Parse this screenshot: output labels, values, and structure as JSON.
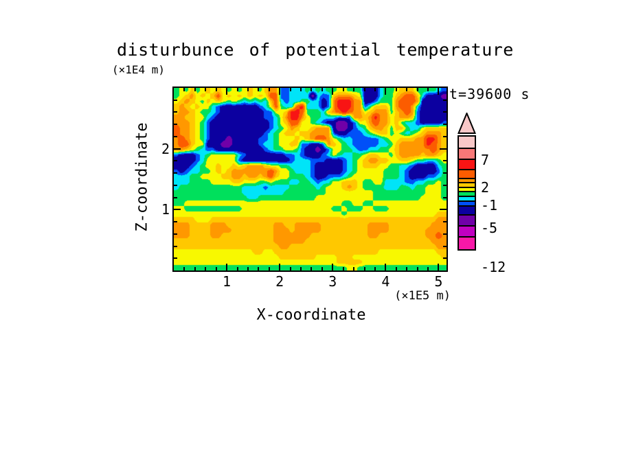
{
  "title": "disturbunce of potential temperature",
  "annotation": {
    "time_label": "t=39600 s"
  },
  "x_axis": {
    "label": "X-coordinate",
    "unit": "(×1E5 m)",
    "range": [
      0,
      5.15
    ],
    "major_ticks": [
      1,
      2,
      3,
      4,
      5
    ],
    "minor_step": 0.2
  },
  "y_axis": {
    "label": "Z-coordinate",
    "unit": "(×1E4 m)",
    "range": [
      0,
      3.0
    ],
    "major_ticks": [
      1,
      2
    ],
    "minor_step": 0.2
  },
  "colorbar": {
    "boxes": [
      {
        "color": "#f8c8c8",
        "h": 20
      },
      {
        "color": "#f87878",
        "h": 18
      },
      {
        "color": "#f81414",
        "h": 17
      },
      {
        "color": "#fc5c00",
        "h": 15
      },
      {
        "color": "#ff9800",
        "h": 8
      },
      {
        "color": "#ffc800",
        "h": 9
      },
      {
        "color": "#f8f800",
        "h": 8
      },
      {
        "color": "#00e05c",
        "h": 9
      },
      {
        "color": "#00e4f8",
        "h": 9
      },
      {
        "color": "#0050f8",
        "h": 9
      },
      {
        "color": "#0c00a0",
        "h": 15
      },
      {
        "color": "#7000a8",
        "h": 18
      },
      {
        "color": "#c000c0",
        "h": 18
      },
      {
        "color": "#f818a8",
        "h": 21
      }
    ],
    "labels": [
      {
        "text": "7",
        "at": 38
      },
      {
        "text": "2",
        "at": 78
      },
      {
        "text": "-1",
        "at": 104
      },
      {
        "text": "-5",
        "at": 137
      },
      {
        "text": "-12",
        "at": 194
      }
    ],
    "arrow_color": "#f8c8c8"
  },
  "chart_data": {
    "type": "heatmap",
    "title": "disturbunce of potential temperature",
    "xlabel": "X-coordinate",
    "x_unit": "(×1E5 m)",
    "ylabel": "Z-coordinate",
    "y_unit": "(×1E4 m)",
    "time": "t=39600 s",
    "xlim": [
      0,
      5.15
    ],
    "ylim": [
      0,
      3.0
    ],
    "levels": [
      10,
      7,
      5,
      3,
      2,
      1,
      0,
      -1,
      -2,
      -3,
      -5,
      -8,
      -12
    ],
    "colors": [
      "#f8c8c8",
      "#f87878",
      "#f81414",
      "#fc5c00",
      "#ff9800",
      "#ffc800",
      "#f8f800",
      "#00e05c",
      "#00e4f8",
      "#0050f8",
      "#0c00a0",
      "#7000a8",
      "#c000c0",
      "#f818a8"
    ],
    "colorbar_tick_labels": [
      "7",
      "2",
      "-1",
      "-5",
      "-12"
    ],
    "letter_values": {
      "A": 11,
      "B": 8,
      "C": 6,
      "D": 4,
      "E": 2.5,
      "F": 1.5,
      "G": 0.5,
      "H": -0.5,
      "I": -1.5,
      "J": -2.5,
      "K": -4,
      "L": -6.5,
      "M": -10,
      "N": -13
    },
    "grid_rows_top_to_bottom": [
      "HGHFHGFGFGHGHGFGHFEEJJIIIHIHIHHGGHHHKKKIHHGFFFHHHHIJ",
      "HGFEGFGFDGFGFGFGFGDDJJIIIILIJJFEEEFGKKKIHHFEDDFIKKKL",
      "GFEFGHFGFGHGHIHIHIFDIJIIHHIIKJECCCEEKKJHHHEDDDEKKKKK",
      "FEFGFGGIJKKKKKKKJIGDHIIDCIIIKJECCCEEJHFFFHEDDEIKKKKK",
      "FEEFGHHIJKKKKKKKKJJGGFCCDHHHIFEDCDEEGFEEEHFEDEJKKKKK",
      "EEFFGGIJKKKKKKKKKJJIGECCEGHHIIIJJJEEFECEEGFEEFJKKKKK",
      "EEEFGHJKKKKKKKKKKKJIGFDDGGHIJKKLLKJGGEDEEGFHIIJKKKKJ",
      "DEEFGHJKKKKKKKKKKKJIHGEFGGFEEEKLLKJIHFEEFHFFHIIGFFFF",
      "DEEFGHJKKKKKKKKKKJIHGFFGFFEEEEJKKJJJIHGFFHGHIHGFEEEF",
      "EDEFGHJKKKLKKKKKJJIHGGGFGFEDDEGHIIJJJJJIHGGFFFEECCEF",
      "EDDFGGKKKLLKKKKKJIIHGGFFJJKKJEFGHIJJJJJIIHFEEEEECDEF",
      "EEFGHIJJKKKKKKKKKJIHHGGHJKKLKJGGHHIJJIIHHGFEEEEEEDEF",
      "JKKKJIHGGGGGIJKKKKKKKJJIJKKKJIGHIIHHGFFGGHFEEEEFEEFG",
      "KKKKJIGGGGGGJKKKKKKKKKJIIIJJJKKKJIHGFEEFFGGFFGHHIIHG",
      "KKKJIHGGFGGFGFEEEFGGHHIIIIJKKKKKJIHGFFFGGHHIIJKKKKIH",
      "JKJIIHHGFGFEEEEEEEDEGGHIIIJKKKKKJIHGGGGGHHHIJKKKKKJH",
      "IIIHHGGGGFFEEFEEFEDFGGHHHIJKKJJJIHGGGGGGHHHIJKKKJJIH",
      "IIIHHHHGGGGFFGGGHHGHHHIIHHIJIIGGFFFGHHGGIIIIJJIIHHGH",
      "IHHHHHHHHHHHHIIIIJIIIIHHHHHIHGGGFEFGHHHHIIIHHIHHGGGH",
      "HHHHHHHHHHHHHIIIIIIIIHHHHHHHHGGGGGGGGGHHHHHHHHHHGGGH",
      "HHHHHHHHHHHHHHIIHHHHHHHHHHHGGGGGGGGGGGHHHHHHHHHGGGGH",
      "HHGGGGGGGGGGGGGGGGGGGGGGGGGGGGGGHHGGHHGGGGGGGGGGGGGG",
      "GGHHHHHHHHHHHGGGGGGGGGGGGGGGGGHHGHHHGGHHHGGGGGGGGGGG",
      "GGGGGGGGGGGGGGGGGGGGGGGGGGGGGGGGHGGGGGGGGGGGGGGGGGFF",
      "FFFFGGGFFFFFFFFFFFFFFFFFFFFFFFFFFFFFFFFFFFFFFFFFFFEE",
      "EEEFFFFEEEFFFFFFFFFEEFFEEEEEFFFFFFFFFEEEEFFFFFFFFEEE",
      "EEEFFFFEEEEFFFFFFFFEEEFEEEEEFFFFFFFFFEEEEFFFFFFFEEEE",
      "EEEFFFFEEFFFFFFFFFFEEEEEEEFFFFFFFFFFFEEFFFFFFFFFEEDE",
      "FFFFFFFFFFFFFFFFFFFEEEEEEFFFFFFFFFFFFFFFFFFFFFFFFEEE",
      "FFFFFFFFFFFFFFFFFFFFEEFFFFFFFFFFFFFFFFFFFFFFFFFFFFEE",
      "GGGGGGGGGGGGGGGFFGGFFFFFFFFFFFFFFFFFFFFGGGGGGGGGGGFF",
      "GGGGGGGGGGGGGGGGGGGGFFFFFFFGGGGFFFGGGGGGGGGGGGGGGGGF",
      "GGGGGGGGGGGGGGGGGGGGGGGGGGGGGGGFFFFFGGGGGGGGGGGGGGGG",
      "HHHHHHHHHHHHHHHHHHHHHHHHHHHHHHHHHGGHHHHHHHHHHHHHHHHH"
    ]
  }
}
